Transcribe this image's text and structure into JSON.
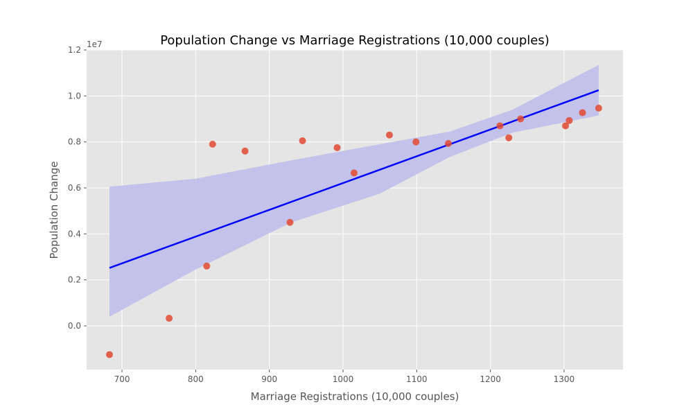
{
  "chart_data": {
    "type": "scatter",
    "title": "Population Change vs Marriage Registrations (10,000 couples)",
    "xlabel": "Marriage Registrations (10,000 couples)",
    "ylabel": "Population Change",
    "y_offset_label": "1e7",
    "xlim": [
      652,
      1380
    ],
    "ylim": [
      -1.9,
      12
    ],
    "x_ticks": [
      700,
      800,
      900,
      1000,
      1100,
      1200,
      1300
    ],
    "x_tick_labels": [
      "700",
      "800",
      "900",
      "1000",
      "1100",
      "1200",
      "1300"
    ],
    "y_ticks": [
      0,
      2,
      4,
      6,
      8,
      10,
      12
    ],
    "y_tick_labels": [
      "0.0",
      "0.2",
      "0.4",
      "0.6",
      "0.8",
      "1.0",
      "1.2"
    ],
    "y_unit_scale": 1000000,
    "grid": true,
    "colors": {
      "background": "#e5e5e5",
      "grid": "#ffffff",
      "points": "#e24a33",
      "regression_line": "#0000ff",
      "confidence_band": "#c0c0ea"
    },
    "series": [
      {
        "points": [
          {
            "x": 683,
            "y": -1.25
          },
          {
            "x": 764,
            "y": 0.33
          },
          {
            "x": 815,
            "y": 2.6
          },
          {
            "x": 823,
            "y": 7.9
          },
          {
            "x": 867,
            "y": 7.6
          },
          {
            "x": 928,
            "y": 4.5
          },
          {
            "x": 945,
            "y": 8.05
          },
          {
            "x": 992,
            "y": 7.75
          },
          {
            "x": 1015,
            "y": 6.65
          },
          {
            "x": 1063,
            "y": 8.3
          },
          {
            "x": 1099,
            "y": 8.0
          },
          {
            "x": 1143,
            "y": 7.93
          },
          {
            "x": 1213,
            "y": 8.7
          },
          {
            "x": 1225,
            "y": 8.18
          },
          {
            "x": 1241,
            "y": 9.0
          },
          {
            "x": 1302,
            "y": 8.7
          },
          {
            "x": 1307,
            "y": 8.93
          },
          {
            "x": 1325,
            "y": 9.27
          },
          {
            "x": 1347,
            "y": 9.47
          }
        ]
      }
    ],
    "regression": {
      "line": [
        {
          "x": 683,
          "y": 2.52
        },
        {
          "x": 1347,
          "y": 10.25
        }
      ],
      "band_upper": [
        {
          "x": 683,
          "y": 6.05
        },
        {
          "x": 800,
          "y": 6.4
        },
        {
          "x": 930,
          "y": 7.2
        },
        {
          "x": 1050,
          "y": 7.9
        },
        {
          "x": 1145,
          "y": 8.45
        },
        {
          "x": 1230,
          "y": 9.4
        },
        {
          "x": 1347,
          "y": 11.35
        }
      ],
      "band_lower": [
        {
          "x": 683,
          "y": 0.4
        },
        {
          "x": 800,
          "y": 2.45
        },
        {
          "x": 930,
          "y": 4.5
        },
        {
          "x": 1050,
          "y": 5.75
        },
        {
          "x": 1145,
          "y": 7.35
        },
        {
          "x": 1230,
          "y": 8.4
        },
        {
          "x": 1347,
          "y": 9.15
        }
      ]
    }
  }
}
